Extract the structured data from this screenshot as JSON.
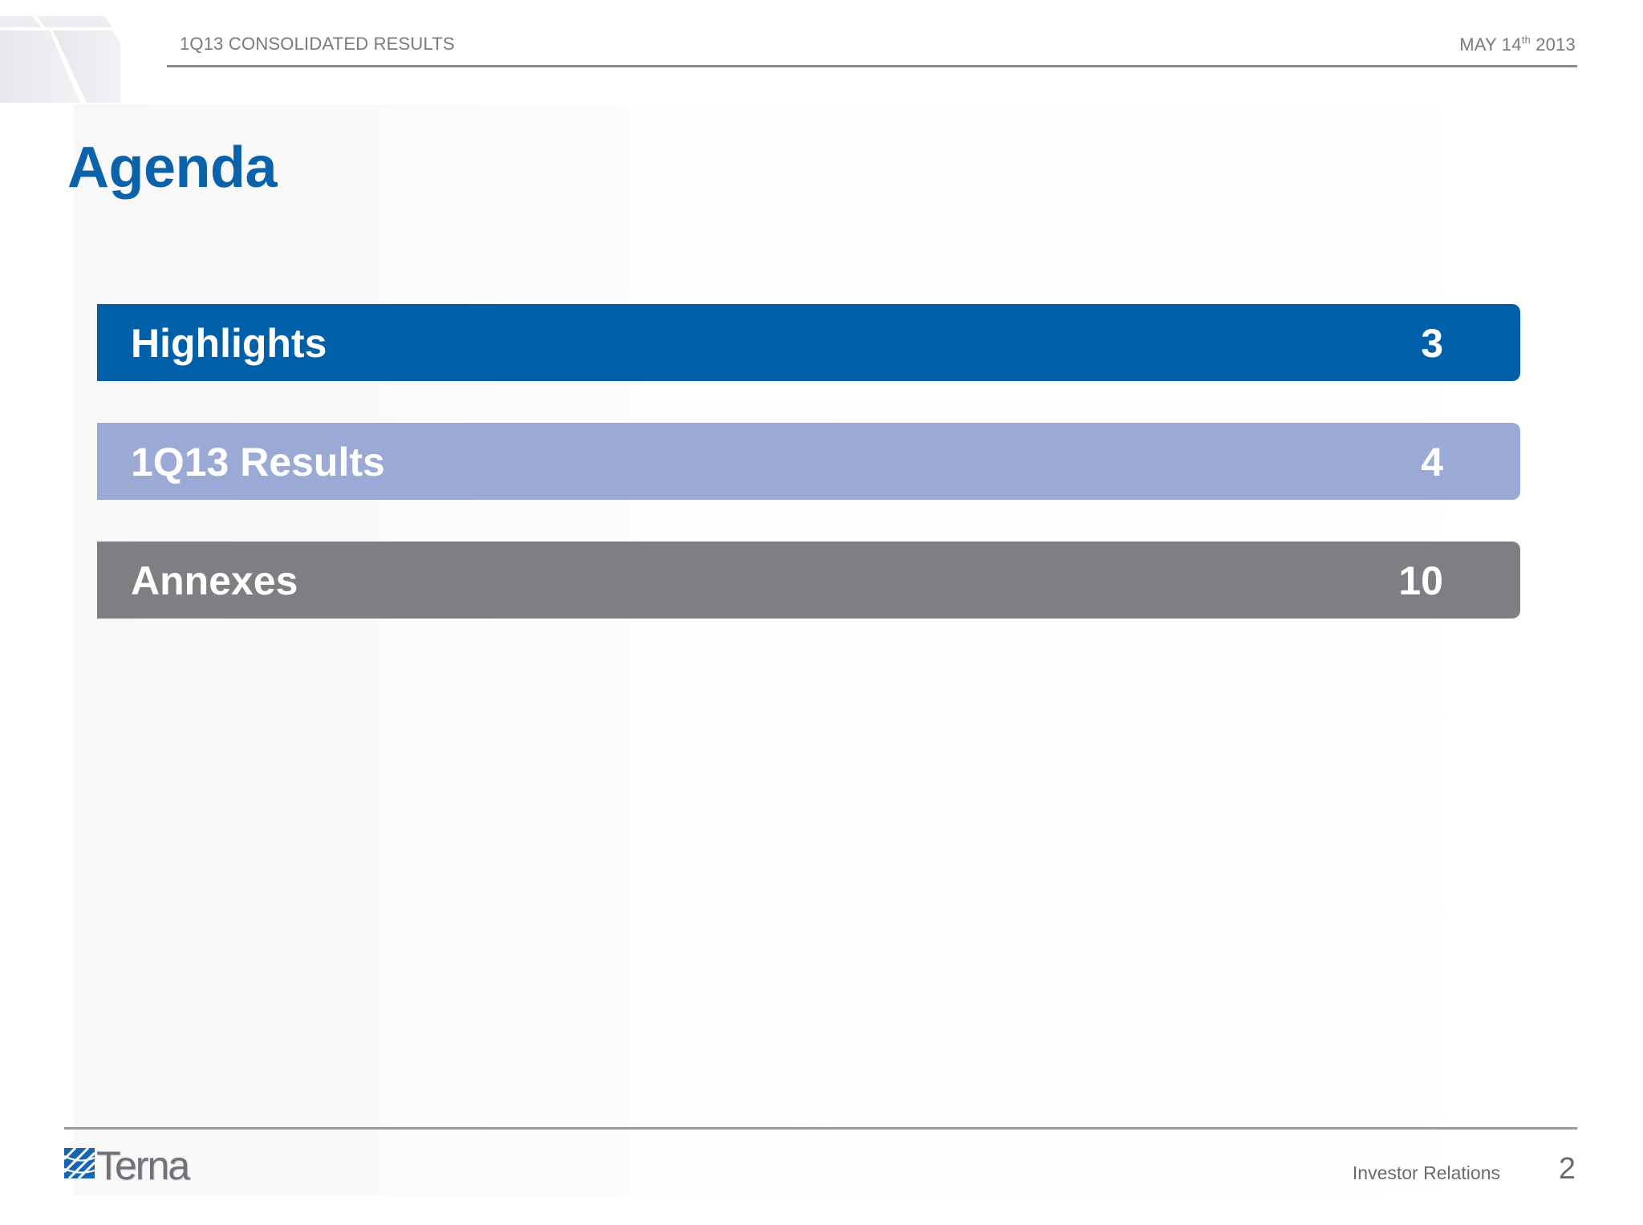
{
  "header": {
    "title": "1Q13 CONSOLIDATED RESULTS",
    "date_main": "MAY 14",
    "date_sup": "th",
    "date_year": "2013"
  },
  "page_title": "Agenda",
  "agenda": [
    {
      "label": "Highlights",
      "page": "3",
      "color": "#005fa9"
    },
    {
      "label": "1Q13 Results",
      "page": "4",
      "color": "#9aaad5"
    },
    {
      "label": "Annexes",
      "page": "10",
      "color": "#7f7e82"
    }
  ],
  "footer": {
    "logo_text": "Terna",
    "label": "Investor Relations",
    "page_number": "2"
  }
}
